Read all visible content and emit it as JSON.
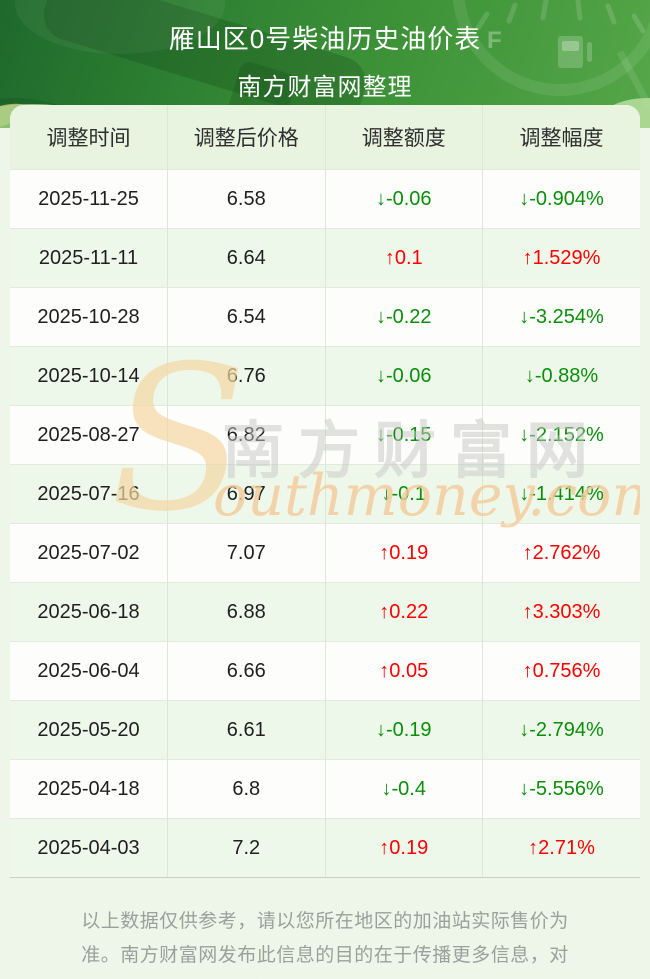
{
  "banner": {
    "title": "雁山区0号柴油历史油价表",
    "subtitle": "南方财富网整理"
  },
  "table": {
    "columns": [
      "调整时间",
      "调整后价格",
      "调整额度",
      "调整幅度"
    ],
    "rows": [
      {
        "date": "2025-11-25",
        "price": "6.58",
        "change": "↓-0.06",
        "range": "↓-0.904%",
        "trend": "down"
      },
      {
        "date": "2025-11-11",
        "price": "6.64",
        "change": "↑0.1",
        "range": "↑1.529%",
        "trend": "up"
      },
      {
        "date": "2025-10-28",
        "price": "6.54",
        "change": "↓-0.22",
        "range": "↓-3.254%",
        "trend": "down"
      },
      {
        "date": "2025-10-14",
        "price": "6.76",
        "change": "↓-0.06",
        "range": "↓-0.88%",
        "trend": "down"
      },
      {
        "date": "2025-08-27",
        "price": "6.82",
        "change": "↓-0.15",
        "range": "↓-2.152%",
        "trend": "down"
      },
      {
        "date": "2025-07-16",
        "price": "6.97",
        "change": "↓-0.1",
        "range": "↓-1.414%",
        "trend": "down"
      },
      {
        "date": "2025-07-02",
        "price": "7.07",
        "change": "↑0.19",
        "range": "↑2.762%",
        "trend": "up"
      },
      {
        "date": "2025-06-18",
        "price": "6.88",
        "change": "↑0.22",
        "range": "↑3.303%",
        "trend": "up"
      },
      {
        "date": "2025-06-04",
        "price": "6.66",
        "change": "↑0.05",
        "range": "↑0.756%",
        "trend": "up"
      },
      {
        "date": "2025-05-20",
        "price": "6.61",
        "change": "↓-0.19",
        "range": "↓-2.794%",
        "trend": "down"
      },
      {
        "date": "2025-04-18",
        "price": "6.8",
        "change": "↓-0.4",
        "range": "↓-5.556%",
        "trend": "down"
      },
      {
        "date": "2025-04-03",
        "price": "7.2",
        "change": "↑0.19",
        "range": "↑2.71%",
        "trend": "up"
      }
    ]
  },
  "watermark": {
    "initial": "S",
    "cn": "南方财富网",
    "en": "outhmoney.com"
  },
  "footer": {
    "disclaimer": "以上数据仅供参考，请以您所在地区的加油站实际售价为准。南方财富网发布此信息的目的在于传播更多信息，对使用该油价信息所导致的结果概不承担责任。"
  },
  "colors": {
    "up_red": "#fe0000",
    "down_green": "#0a8f0a",
    "banner_green_dark": "#1e692c",
    "banner_green_light": "#55a748",
    "table_header_bg": "#e8f3e0",
    "row_alt_bg": "#eef8ea",
    "page_bg": "#eef5e9",
    "watermark_orange": "#f5d7a3"
  }
}
